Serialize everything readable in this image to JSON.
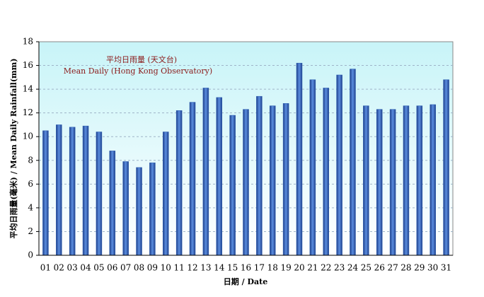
{
  "chart_data": {
    "type": "bar",
    "annotations": [
      "平均日雨量 (天文台)",
      "Mean Daily (Hong Kong Observatory)"
    ],
    "x_label": "日期 / Date",
    "y_label": "平均日雨量(毫米) / Mean Daily Rainfall(mm)",
    "categories": [
      "01",
      "02",
      "03",
      "04",
      "05",
      "06",
      "07",
      "08",
      "09",
      "10",
      "11",
      "12",
      "13",
      "14",
      "15",
      "16",
      "17",
      "18",
      "19",
      "20",
      "21",
      "22",
      "23",
      "24",
      "25",
      "26",
      "27",
      "28",
      "29",
      "30",
      "31"
    ],
    "values": [
      10.5,
      11.0,
      10.8,
      10.9,
      10.4,
      8.8,
      7.9,
      7.4,
      7.8,
      10.4,
      12.2,
      12.9,
      14.1,
      13.3,
      11.8,
      12.3,
      13.4,
      12.6,
      12.8,
      16.2,
      14.8,
      14.1,
      15.2,
      15.7,
      12.6,
      12.3,
      12.3,
      12.6,
      12.6,
      12.7,
      14.8
    ],
    "color": "#2a5db0",
    "ylim": [
      0,
      18
    ],
    "yticks": [
      0,
      2,
      4,
      6,
      8,
      10,
      12,
      14,
      16,
      18
    ],
    "grid": true
  }
}
